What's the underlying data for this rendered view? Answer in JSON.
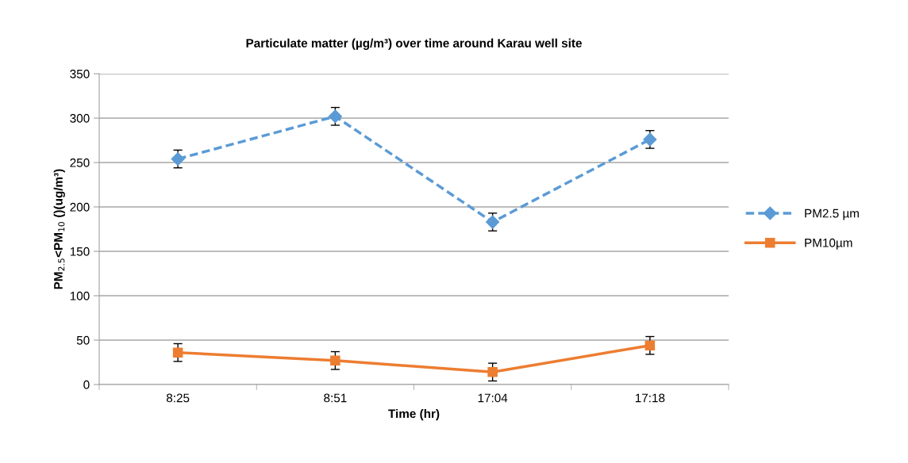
{
  "chart_data": {
    "type": "line",
    "title": "Particulate matter (µg/m³) over time around Karau well site",
    "xlabel": "Time (hr)",
    "ylabel": "PM$_{2.5}$<PM$_{10}$ ()(ug/m³)",
    "categories": [
      "8:25",
      "8:51",
      "17:04",
      "17:18"
    ],
    "series": [
      {
        "name": "PM2.5 µm",
        "color": "#5b9bd5",
        "values": [
          254,
          302,
          183,
          276
        ],
        "errors": [
          10,
          10,
          10,
          10
        ],
        "marker": "diamond",
        "line_style": "dashed"
      },
      {
        "name": "PM10µm",
        "color": "#ed7d31",
        "values": [
          36,
          27,
          14,
          44
        ],
        "errors": [
          10,
          10,
          10,
          10
        ],
        "marker": "square",
        "line_style": "solid"
      }
    ],
    "ylim": [
      0,
      350
    ],
    "yticks": [
      0,
      50,
      100,
      150,
      200,
      250,
      300,
      350
    ],
    "grid": "y",
    "legend": "right"
  }
}
